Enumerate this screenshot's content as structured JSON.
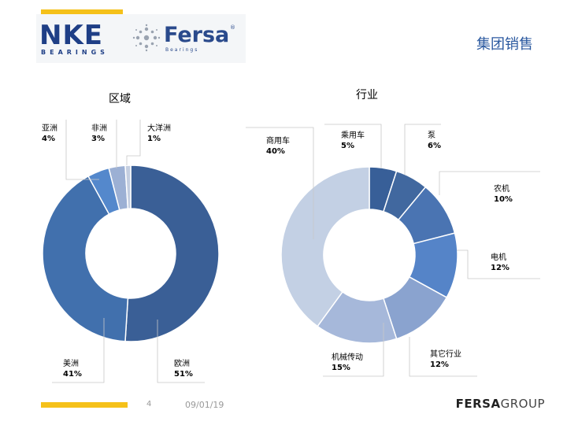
{
  "header": {
    "logo_nke": "NKE",
    "logo_nke_sub": "BEARINGS",
    "logo_fersa": "Fersa",
    "logo_fersa_sub": "Bearings",
    "logo_fersa_reg": "®",
    "title": "集团销售"
  },
  "chart_data": [
    {
      "type": "pie",
      "title": "区域",
      "categories": [
        "欧洲",
        "美洲",
        "亚洲",
        "非洲",
        "大洋洲"
      ],
      "values": [
        51,
        41,
        4,
        3,
        1
      ],
      "colors": [
        "#3a5f96",
        "#4170ad",
        "#5488cc",
        "#9cb0d4",
        "#c4cee0"
      ],
      "labels": [
        "51%",
        "41%",
        "4%",
        "3%",
        "1%"
      ]
    },
    {
      "type": "pie",
      "title": "行业",
      "categories": [
        "乘用车",
        "泵",
        "农机",
        "电机",
        "其它行业",
        "机械传动",
        "商用车"
      ],
      "values": [
        5,
        6,
        10,
        12,
        12,
        15,
        40
      ],
      "colors": [
        "#385f98",
        "#41689f",
        "#4a74b2",
        "#5584c8",
        "#8aa3cf",
        "#a6b8da",
        "#c3d0e4"
      ],
      "labels": [
        "5%",
        "6%",
        "10%",
        "12%",
        "12%",
        "15%",
        "40%"
      ]
    }
  ],
  "footer": {
    "page": "4",
    "date": "09/01/19",
    "brand_bold": "FERSA",
    "brand_light": "GROUP"
  }
}
